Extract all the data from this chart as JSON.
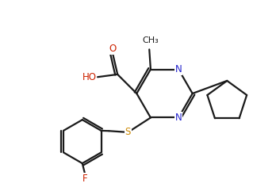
{
  "background": "#ffffff",
  "line_color": "#1a1a1a",
  "N_color": "#2222cc",
  "S_color": "#cc8800",
  "O_color": "#cc2200",
  "F_color": "#cc2200",
  "line_width": 1.6,
  "font_size": 8.5,
  "xlim": [
    0,
    10
  ],
  "ylim": [
    0,
    7
  ]
}
